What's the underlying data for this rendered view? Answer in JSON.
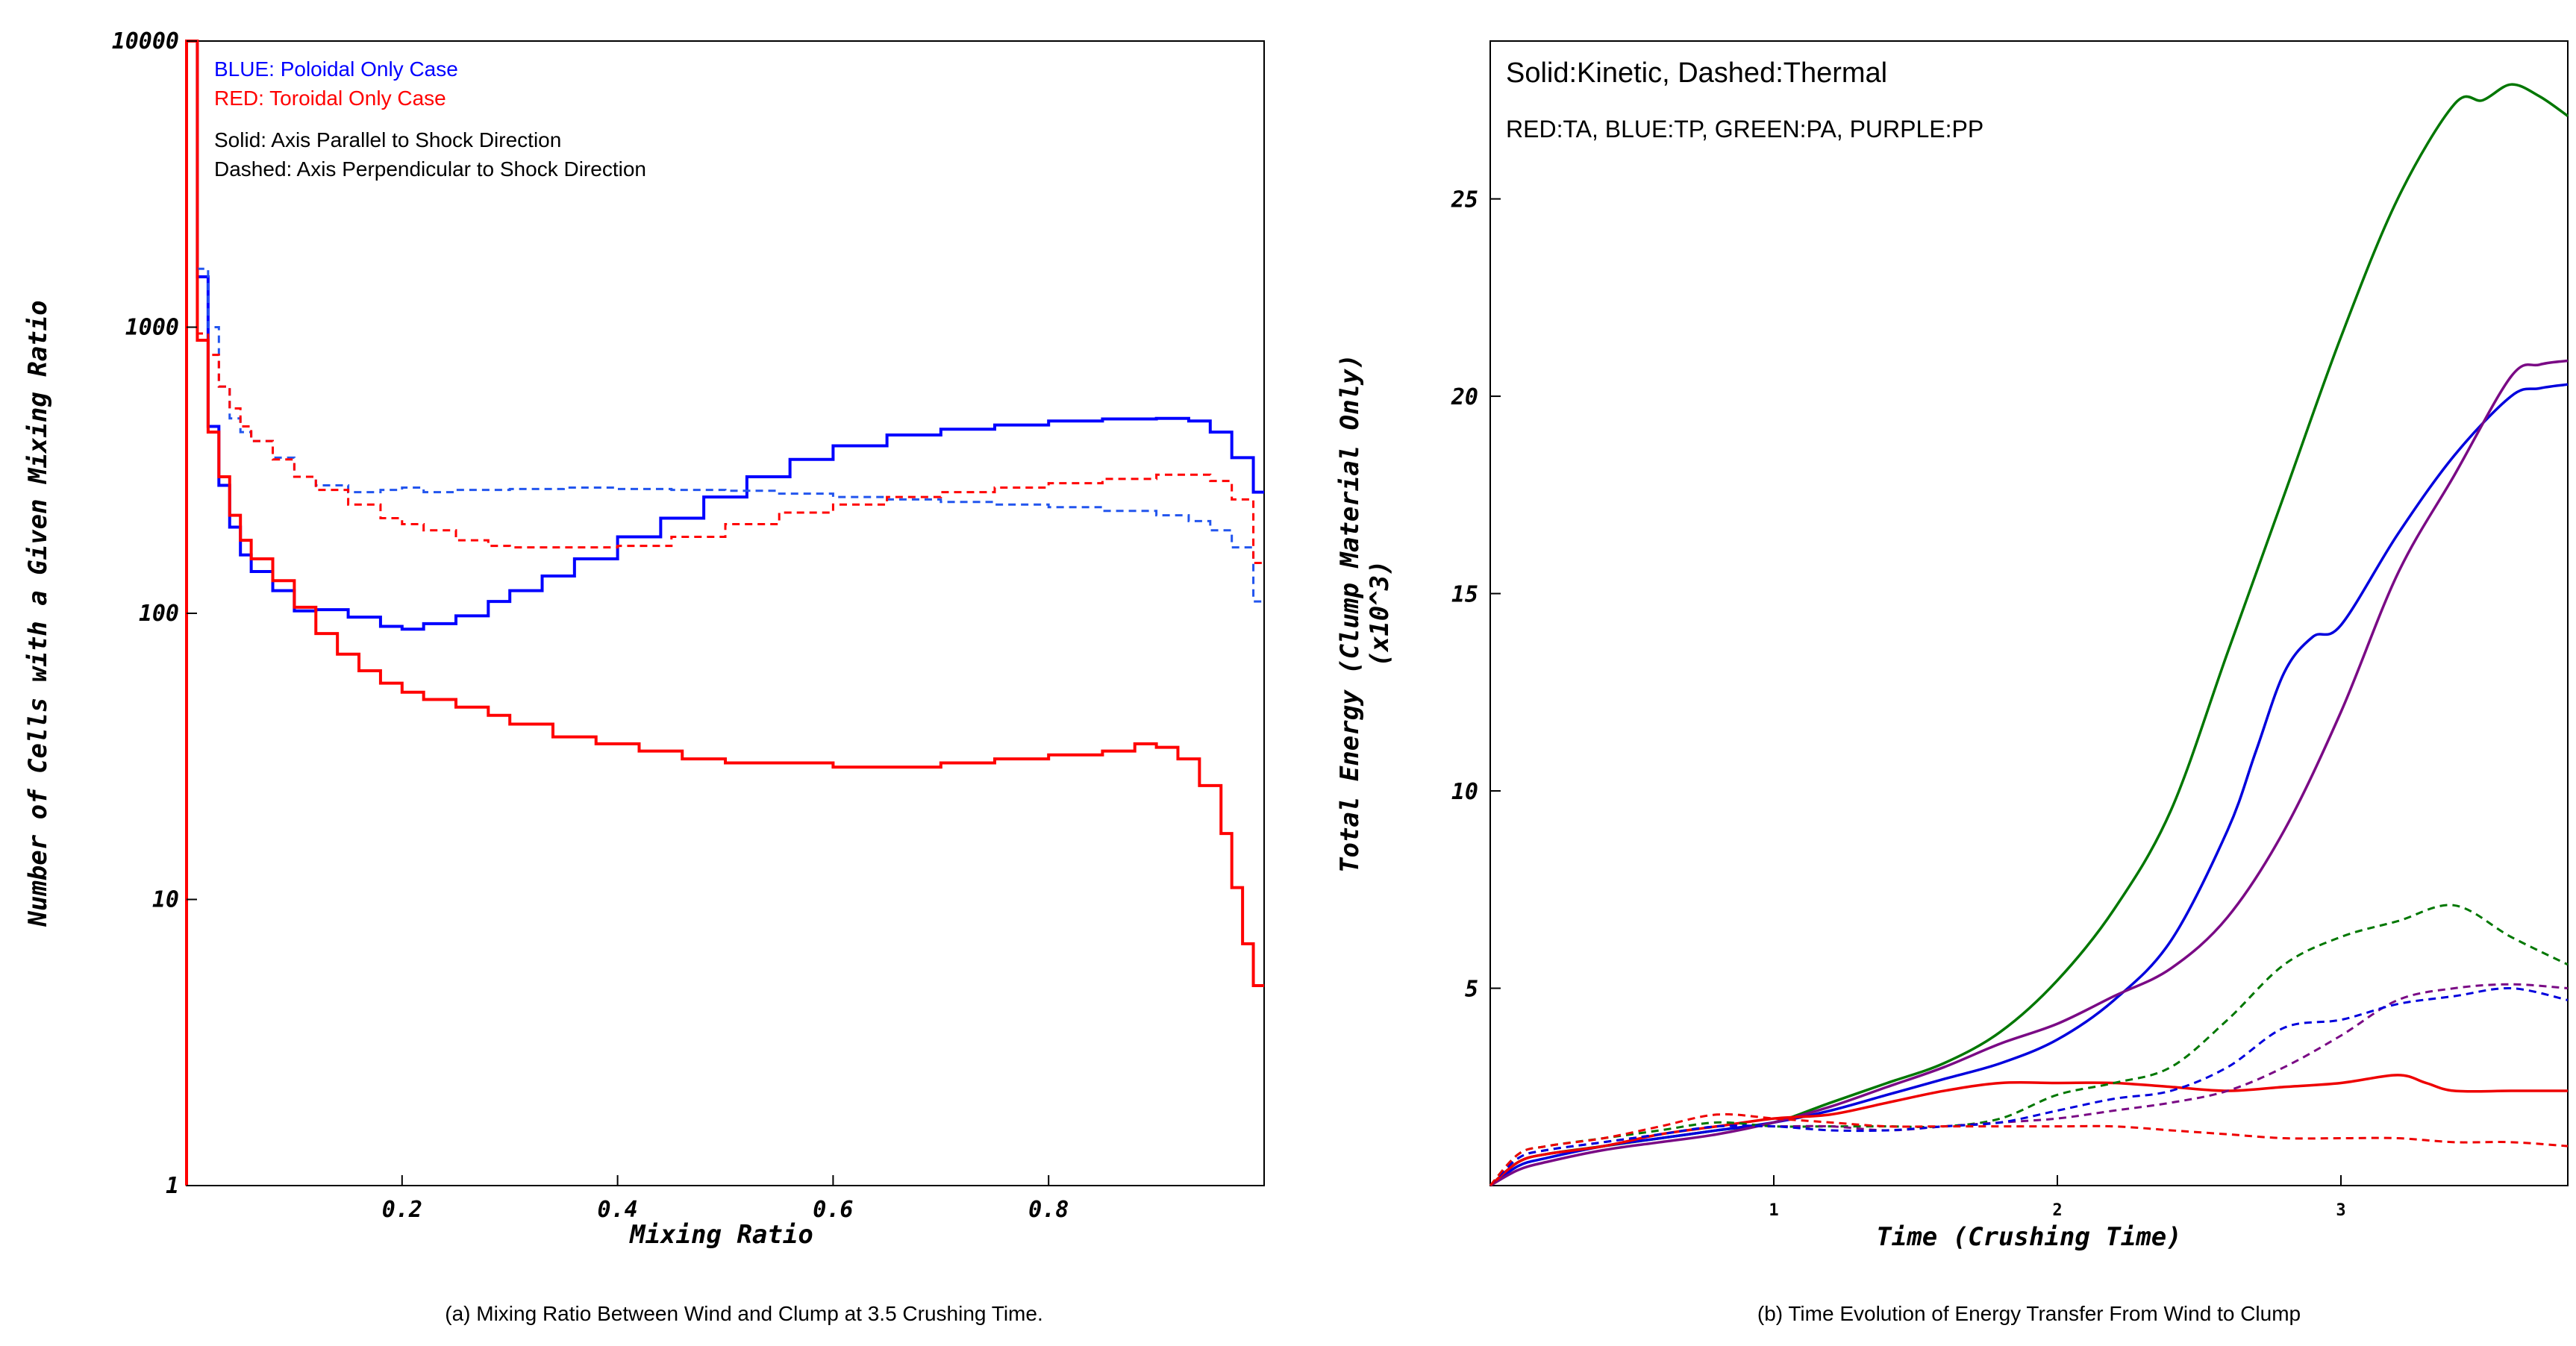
{
  "chart_data": [
    {
      "type": "line",
      "step": true,
      "caption": "(a) Mixing Ratio Between Wind and Clump at 3.5 Crushing Time.",
      "xlabel": "Mixing Ratio",
      "ylabel": "Number of Cells with a Given Mixing Ratio",
      "yscale": "log",
      "xlim": [
        0.0,
        1.0
      ],
      "ylim": [
        1,
        10000
      ],
      "xticks": [
        "0.2",
        "0.4",
        "0.6",
        "0.8"
      ],
      "yticks": [
        "1",
        "10",
        "100",
        "1000",
        "10000"
      ],
      "legend_lines": [
        {
          "text": "BLUE: Poloidal Only Case",
          "color": "#0000ff"
        },
        {
          "text": "RED: Toroidal Only Case",
          "color": "#ff0000"
        },
        {
          "text": "Solid: Axis Parallel to Shock Direction",
          "color": "#000000"
        },
        {
          "text": "Dashed: Axis Perpendicular to Shock Direction",
          "color": "#000000"
        }
      ],
      "series": [
        {
          "name": "Poloidal, Parallel",
          "color": "#0000ff",
          "dash": false,
          "x": [
            0.0,
            0.01,
            0.02,
            0.03,
            0.04,
            0.05,
            0.06,
            0.08,
            0.1,
            0.12,
            0.15,
            0.18,
            0.2,
            0.22,
            0.25,
            0.28,
            0.3,
            0.33,
            0.36,
            0.4,
            0.44,
            0.48,
            0.52,
            0.56,
            0.6,
            0.65,
            0.7,
            0.75,
            0.8,
            0.85,
            0.9,
            0.93,
            0.95,
            0.97,
            0.99,
            1.0
          ],
          "y": [
            10000,
            1500,
            450,
            280,
            200,
            160,
            140,
            120,
            102,
            103,
            97,
            90,
            88,
            92,
            98,
            110,
            120,
            135,
            155,
            185,
            215,
            255,
            300,
            345,
            385,
            420,
            440,
            455,
            470,
            478,
            480,
            470,
            430,
            350,
            265,
            265
          ]
        },
        {
          "name": "Toroidal, Parallel",
          "color": "#ff0000",
          "dash": false,
          "x": [
            0.0,
            0.01,
            0.02,
            0.03,
            0.04,
            0.05,
            0.06,
            0.08,
            0.1,
            0.12,
            0.14,
            0.16,
            0.18,
            0.2,
            0.22,
            0.25,
            0.28,
            0.3,
            0.34,
            0.38,
            0.42,
            0.46,
            0.5,
            0.55,
            0.6,
            0.65,
            0.7,
            0.75,
            0.8,
            0.85,
            0.88,
            0.9,
            0.92,
            0.94,
            0.96,
            0.97,
            0.98,
            0.99,
            1.0
          ],
          "y": [
            10000,
            900,
            430,
            300,
            220,
            180,
            155,
            130,
            105,
            85,
            72,
            63,
            57,
            53,
            50,
            47,
            44,
            41,
            37,
            35,
            33,
            31,
            30,
            30,
            29,
            29,
            30,
            31,
            32,
            33,
            35,
            34,
            31,
            25,
            17,
            11,
            7,
            5,
            5
          ]
        },
        {
          "name": "Poloidal, Perpendicular",
          "color": "#2255ee",
          "dash": true,
          "x": [
            0.0,
            0.01,
            0.02,
            0.03,
            0.04,
            0.05,
            0.06,
            0.08,
            0.1,
            0.12,
            0.15,
            0.18,
            0.2,
            0.22,
            0.25,
            0.3,
            0.35,
            0.4,
            0.45,
            0.5,
            0.55,
            0.6,
            0.65,
            0.7,
            0.75,
            0.8,
            0.85,
            0.9,
            0.93,
            0.95,
            0.97,
            0.99,
            1.0
          ],
          "y": [
            10000,
            1600,
            1000,
            620,
            480,
            430,
            400,
            350,
            300,
            280,
            265,
            270,
            275,
            265,
            270,
            272,
            275,
            272,
            270,
            268,
            262,
            255,
            250,
            245,
            240,
            235,
            228,
            220,
            210,
            195,
            170,
            110,
            110
          ]
        },
        {
          "name": "Toroidal, Perpendicular",
          "color": "#ff0000",
          "dash": true,
          "x": [
            0.0,
            0.01,
            0.02,
            0.03,
            0.04,
            0.05,
            0.06,
            0.08,
            0.1,
            0.12,
            0.15,
            0.18,
            0.2,
            0.22,
            0.25,
            0.28,
            0.3,
            0.35,
            0.4,
            0.45,
            0.5,
            0.55,
            0.6,
            0.65,
            0.7,
            0.75,
            0.8,
            0.85,
            0.9,
            0.93,
            0.95,
            0.97,
            0.99,
            1.0
          ],
          "y": [
            10000,
            950,
            800,
            620,
            520,
            450,
            400,
            345,
            300,
            270,
            240,
            215,
            205,
            195,
            180,
            172,
            170,
            170,
            172,
            185,
            205,
            225,
            240,
            255,
            265,
            275,
            285,
            295,
            305,
            305,
            290,
            250,
            150,
            150
          ]
        }
      ]
    },
    {
      "type": "line",
      "caption": "(b) Time Evolution of Energy Transfer From Wind to Clump",
      "xlabel": "Time (Crushing Time)",
      "ylabel": "Total Energy (Clump Material Only)",
      "ylabel2": "(x10^3)",
      "xlim": [
        0.0,
        3.8
      ],
      "ylim": [
        0,
        29
      ],
      "xticks": [
        "1",
        "2",
        "3"
      ],
      "yticks": [
        "5",
        "10",
        "15",
        "20",
        "25"
      ],
      "legend_lines": [
        {
          "text": "Solid:Kinetic, Dashed:Thermal"
        },
        {
          "text": "RED:TA, BLUE:TP, GREEN:PA, PURPLE:PP"
        }
      ],
      "series": [
        {
          "name": "GREEN:PA Kinetic",
          "color": "#007700",
          "dash": false,
          "x": [
            0.0,
            0.1,
            0.2,
            0.4,
            0.6,
            0.8,
            1.0,
            1.2,
            1.4,
            1.6,
            1.8,
            2.0,
            2.2,
            2.4,
            2.6,
            2.8,
            3.0,
            3.2,
            3.4,
            3.5,
            3.6,
            3.7,
            3.8
          ],
          "y": [
            0,
            0.6,
            0.8,
            1.0,
            1.2,
            1.4,
            1.6,
            2.1,
            2.6,
            3.1,
            3.9,
            5.2,
            7.0,
            9.5,
            13.5,
            17.5,
            21.5,
            25.0,
            27.4,
            27.5,
            27.9,
            27.6,
            27.1
          ]
        },
        {
          "name": "BLUE:TP Kinetic",
          "color": "#0000dd",
          "dash": false,
          "x": [
            0.0,
            0.1,
            0.2,
            0.4,
            0.6,
            0.8,
            1.0,
            1.2,
            1.4,
            1.6,
            1.8,
            2.0,
            2.2,
            2.4,
            2.6,
            2.7,
            2.8,
            2.9,
            3.0,
            3.2,
            3.4,
            3.6,
            3.7,
            3.8
          ],
          "y": [
            0,
            0.5,
            0.7,
            1.0,
            1.2,
            1.4,
            1.6,
            1.9,
            2.3,
            2.7,
            3.1,
            3.7,
            4.7,
            6.2,
            9.0,
            11.0,
            13.0,
            13.9,
            14.2,
            16.5,
            18.5,
            20.0,
            20.2,
            20.3
          ]
        },
        {
          "name": "PURPLE:PP Kinetic",
          "color": "#7a0a85",
          "dash": false,
          "x": [
            0.0,
            0.1,
            0.2,
            0.4,
            0.6,
            0.8,
            1.0,
            1.2,
            1.4,
            1.6,
            1.8,
            2.0,
            2.2,
            2.4,
            2.6,
            2.8,
            3.0,
            3.2,
            3.4,
            3.6,
            3.7,
            3.8
          ],
          "y": [
            0,
            0.4,
            0.6,
            0.9,
            1.1,
            1.3,
            1.6,
            2.0,
            2.5,
            3.0,
            3.6,
            4.1,
            4.8,
            5.5,
            6.8,
            9.0,
            12.0,
            15.5,
            18.0,
            20.5,
            20.8,
            20.9
          ]
        },
        {
          "name": "RED:TA Kinetic",
          "color": "#ee0000",
          "dash": false,
          "x": [
            0.0,
            0.1,
            0.2,
            0.4,
            0.6,
            0.8,
            1.0,
            1.2,
            1.4,
            1.6,
            1.8,
            2.0,
            2.2,
            2.4,
            2.6,
            2.8,
            3.0,
            3.2,
            3.3,
            3.4,
            3.6,
            3.8
          ],
          "y": [
            0,
            0.6,
            0.8,
            1.0,
            1.3,
            1.5,
            1.7,
            1.8,
            2.1,
            2.4,
            2.6,
            2.6,
            2.6,
            2.5,
            2.4,
            2.5,
            2.6,
            2.8,
            2.6,
            2.4,
            2.4,
            2.4
          ]
        },
        {
          "name": "GREEN:PA Thermal",
          "color": "#007700",
          "dash": true,
          "x": [
            0.0,
            0.1,
            0.2,
            0.4,
            0.6,
            0.8,
            1.0,
            1.2,
            1.4,
            1.6,
            1.8,
            2.0,
            2.2,
            2.4,
            2.6,
            2.8,
            3.0,
            3.2,
            3.4,
            3.6,
            3.8
          ],
          "y": [
            0,
            0.8,
            1.0,
            1.2,
            1.4,
            1.6,
            1.5,
            1.5,
            1.5,
            1.5,
            1.7,
            2.3,
            2.6,
            3.0,
            4.2,
            5.6,
            6.3,
            6.7,
            7.1,
            6.3,
            5.6
          ]
        },
        {
          "name": "PURPLE:PP Thermal",
          "color": "#7a0a85",
          "dash": true,
          "x": [
            0.0,
            0.1,
            0.2,
            0.4,
            0.6,
            0.8,
            1.0,
            1.2,
            1.4,
            1.6,
            1.8,
            2.0,
            2.2,
            2.4,
            2.6,
            2.8,
            3.0,
            3.2,
            3.4,
            3.6,
            3.8
          ],
          "y": [
            0,
            0.7,
            0.9,
            1.1,
            1.3,
            1.5,
            1.5,
            1.5,
            1.4,
            1.5,
            1.6,
            1.7,
            1.9,
            2.1,
            2.4,
            3.0,
            3.8,
            4.7,
            5.0,
            5.1,
            5.0
          ]
        },
        {
          "name": "BLUE:TP Thermal",
          "color": "#0000dd",
          "dash": true,
          "x": [
            0.0,
            0.1,
            0.2,
            0.4,
            0.6,
            0.8,
            1.0,
            1.2,
            1.4,
            1.6,
            1.8,
            2.0,
            2.2,
            2.4,
            2.6,
            2.8,
            3.0,
            3.2,
            3.4,
            3.6,
            3.8
          ],
          "y": [
            0,
            0.7,
            0.9,
            1.1,
            1.3,
            1.5,
            1.5,
            1.4,
            1.4,
            1.5,
            1.6,
            1.9,
            2.2,
            2.4,
            3.0,
            4.0,
            4.2,
            4.6,
            4.8,
            5.0,
            4.7
          ]
        },
        {
          "name": "RED:TA Thermal",
          "color": "#ee0000",
          "dash": true,
          "x": [
            0.0,
            0.1,
            0.2,
            0.4,
            0.6,
            0.8,
            1.0,
            1.2,
            1.4,
            1.6,
            1.8,
            2.0,
            2.2,
            2.4,
            2.6,
            2.8,
            3.0,
            3.2,
            3.4,
            3.6,
            3.8
          ],
          "y": [
            0,
            0.8,
            1.0,
            1.2,
            1.5,
            1.8,
            1.7,
            1.6,
            1.5,
            1.5,
            1.5,
            1.5,
            1.5,
            1.4,
            1.3,
            1.2,
            1.2,
            1.2,
            1.1,
            1.1,
            1.0
          ]
        }
      ]
    }
  ]
}
